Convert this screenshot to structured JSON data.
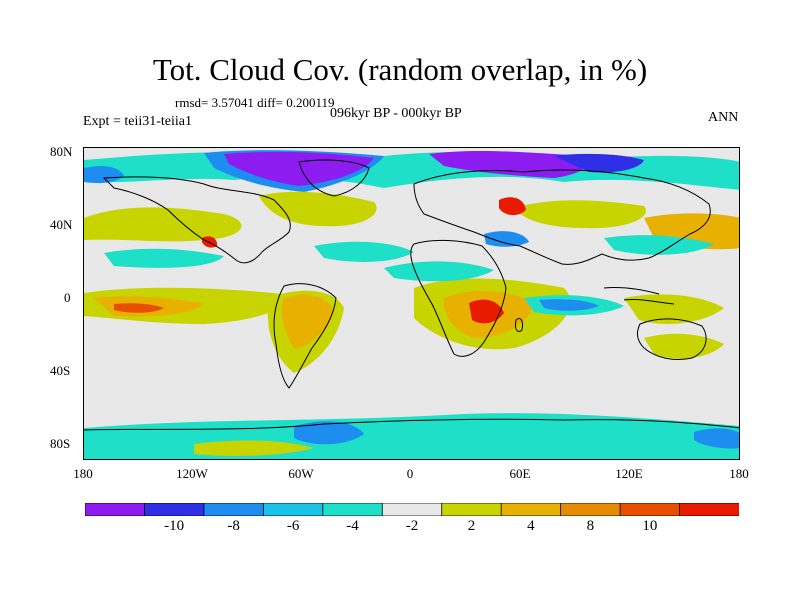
{
  "title": "Tot. Cloud Cov. (random overlap, in %)",
  "stats": "rmsd= 3.57041 diff= 0.200119",
  "period": "096kyr BP - 000kyr BP",
  "experiment": "Expt = teii31-teiia1",
  "season": "ANN",
  "axes": {
    "y_ticks": [
      "80N",
      "40N",
      "0",
      "40S",
      "80S"
    ],
    "x_ticks": [
      "180",
      "120W",
      "60W",
      "0",
      "60E",
      "120E",
      "180"
    ]
  },
  "colorbar": {
    "colors": [
      "#8c1cf0",
      "#2f2fe8",
      "#1d8ef0",
      "#18c2e8",
      "#1ee0c8",
      "#e8e8e8",
      "#c8d400",
      "#e8b000",
      "#e88a00",
      "#e85000",
      "#e81a00"
    ],
    "labels": [
      "-10",
      "-8",
      "-6",
      "-4",
      "-2",
      "2",
      "4",
      "8",
      "10"
    ]
  },
  "colors": {
    "neutral": "#e8e8e8",
    "coast": "#000000"
  }
}
